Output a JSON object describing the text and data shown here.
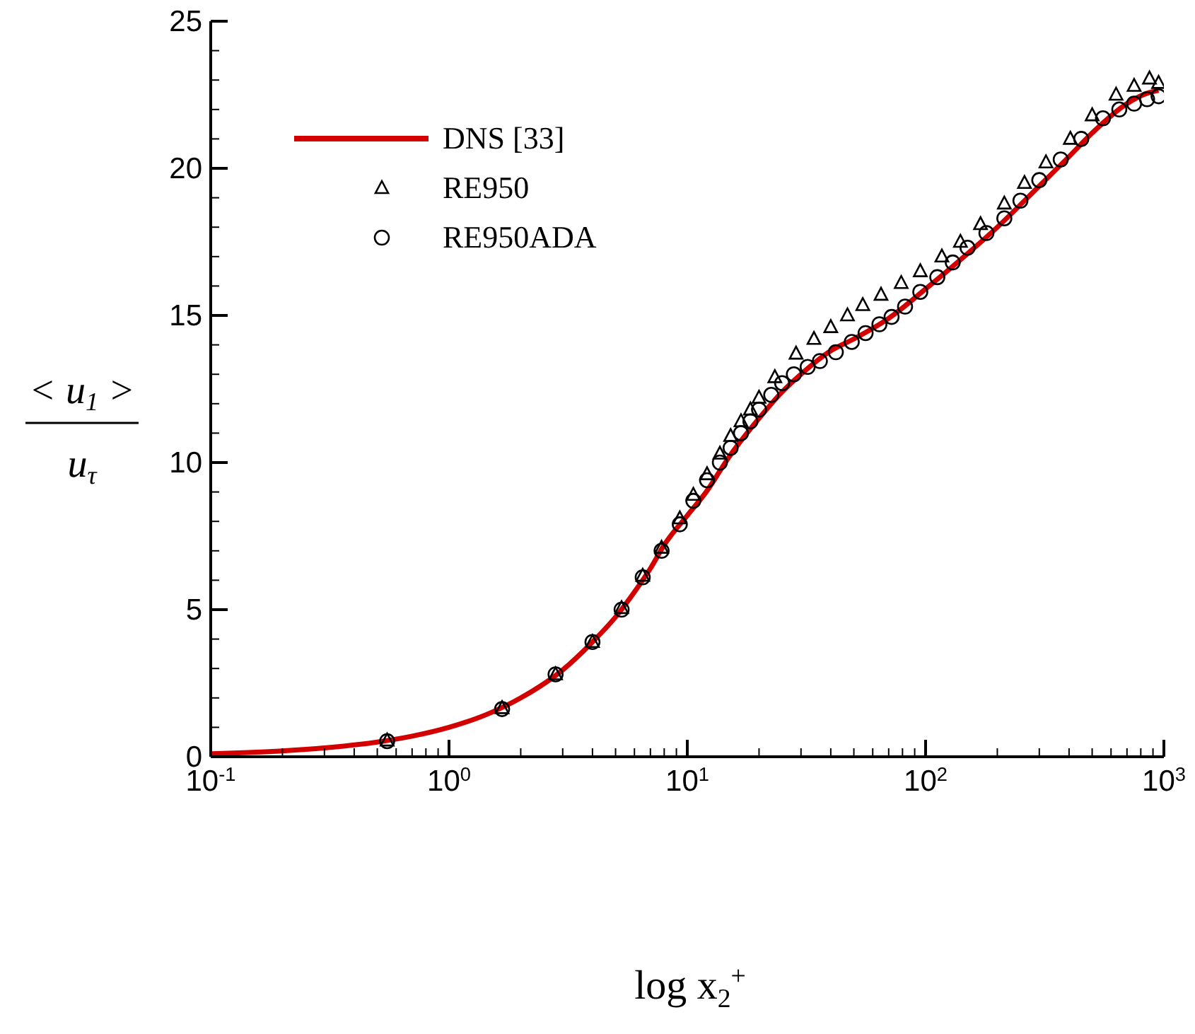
{
  "chart_data": {
    "type": "scatter",
    "xlabel": "log x$_{2}$$^{+}$",
    "ylabel": "< u$_{1}$ >\nu$_{τ}$",
    "log": "x",
    "xlim": [
      0.1,
      1000
    ],
    "ylim": [
      0,
      25
    ],
    "xticks": [
      {
        "value": 0.1,
        "label": "10$^{-1}$"
      },
      {
        "value": 0.2,
        "label": null
      },
      {
        "value": 0.3,
        "label": null
      },
      {
        "value": 0.4,
        "label": null
      },
      {
        "value": 0.5,
        "label": null
      },
      {
        "value": 0.6,
        "label": null
      },
      {
        "value": 0.7,
        "label": null
      },
      {
        "value": 0.8,
        "label": null
      },
      {
        "value": 0.9,
        "label": null
      },
      {
        "value": 1,
        "label": "10$^{0}$"
      },
      {
        "value": 2,
        "label": null
      },
      {
        "value": 3,
        "label": null
      },
      {
        "value": 4,
        "label": null
      },
      {
        "value": 5,
        "label": null
      },
      {
        "value": 6,
        "label": null
      },
      {
        "value": 7,
        "label": null
      },
      {
        "value": 8,
        "label": null
      },
      {
        "value": 9,
        "label": null
      },
      {
        "value": 10,
        "label": "10$^{1}$"
      },
      {
        "value": 20,
        "label": null
      },
      {
        "value": 30,
        "label": null
      },
      {
        "value": 40,
        "label": null
      },
      {
        "value": 50,
        "label": null
      },
      {
        "value": 60,
        "label": null
      },
      {
        "value": 70,
        "label": null
      },
      {
        "value": 80,
        "label": null
      },
      {
        "value": 90,
        "label": null
      },
      {
        "value": 100,
        "label": "10$^{2}$"
      },
      {
        "value": 200,
        "label": null
      },
      {
        "value": 300,
        "label": null
      },
      {
        "value": 400,
        "label": null
      },
      {
        "value": 500,
        "label": null
      },
      {
        "value": 600,
        "label": null
      },
      {
        "value": 700,
        "label": null
      },
      {
        "value": 800,
        "label": null
      },
      {
        "value": 900,
        "label": null
      },
      {
        "value": 1000,
        "label": "10$^{3}$"
      }
    ],
    "yticks": [
      0,
      {
        "value": 1,
        "label": null
      },
      {
        "value": 2,
        "label": null
      },
      {
        "value": 3,
        "label": null
      },
      {
        "value": 4,
        "label": null
      },
      5,
      {
        "value": 6,
        "label": null
      },
      {
        "value": 7,
        "label": null
      },
      {
        "value": 8,
        "label": null
      },
      {
        "value": 9,
        "label": null
      },
      10,
      {
        "value": 11,
        "label": null
      },
      {
        "value": 12,
        "label": null
      },
      {
        "value": 13,
        "label": null
      },
      {
        "value": 14,
        "label": null
      },
      15,
      {
        "value": 16,
        "label": null
      },
      {
        "value": 17,
        "label": null
      },
      {
        "value": 18,
        "label": null
      },
      {
        "value": 19,
        "label": null
      },
      20,
      {
        "value": 21,
        "label": null
      },
      {
        "value": 22,
        "label": null
      },
      {
        "value": 23,
        "label": null
      },
      {
        "value": 24,
        "label": null
      },
      25
    ],
    "grid": false,
    "legend": "top left",
    "series": [
      {
        "name": "DNS [33]",
        "type": "line",
        "color": "#d40000",
        "marker": "none",
        "line_style": "solid",
        "x": [
          0.1,
          0.2,
          0.3,
          0.5,
          0.7,
          1,
          1.5,
          2,
          3,
          4,
          5,
          6,
          7,
          8,
          10,
          12,
          15,
          20,
          25,
          30,
          40,
          50,
          70,
          100,
          150,
          200,
          300,
          400,
          500,
          700,
          850,
          950
        ],
        "values": [
          0.1,
          0.2,
          0.3,
          0.5,
          0.7,
          1.0,
          1.5,
          2.0,
          2.95,
          3.9,
          4.75,
          5.6,
          6.4,
          7.2,
          8.2,
          9.0,
          10.2,
          11.5,
          12.4,
          13.0,
          13.8,
          14.2,
          14.9,
          15.9,
          17.1,
          18.0,
          19.4,
          20.4,
          21.2,
          22.2,
          22.55,
          22.65
        ]
      },
      {
        "name": "RE950",
        "color": "#000000",
        "marker": "triangle",
        "x": [
          0.55,
          1.67,
          2.8,
          4.0,
          5.3,
          6.5,
          7.8,
          9.3,
          10.6,
          12.1,
          13.7,
          15.2,
          16.8,
          18.4,
          20,
          23.3,
          28.6,
          34,
          40,
          47,
          54.5,
          65,
          79,
          95,
          117,
          140,
          170,
          214,
          260,
          320,
          405,
          500,
          630,
          750,
          870,
          950
        ],
        "values": [
          0.55,
          1.65,
          2.8,
          3.9,
          5.05,
          6.15,
          7.1,
          8.1,
          8.9,
          9.6,
          10.3,
          10.9,
          11.4,
          11.8,
          12.2,
          12.9,
          13.7,
          14.2,
          14.6,
          15.0,
          15.35,
          15.7,
          16.1,
          16.5,
          17.0,
          17.5,
          18.1,
          18.8,
          19.5,
          20.2,
          21.0,
          21.8,
          22.5,
          22.8,
          23.05,
          22.9
        ]
      },
      {
        "name": "RE950ADA",
        "color": "#000000",
        "marker": "circle",
        "x": [
          0.55,
          1.67,
          2.8,
          4.0,
          5.3,
          6.5,
          7.8,
          9.3,
          10.6,
          12.1,
          13.7,
          15.2,
          16.8,
          18.4,
          20,
          22.5,
          25,
          28,
          32,
          36,
          42,
          49,
          56,
          64,
          72,
          82,
          95,
          112,
          130,
          150,
          180,
          214,
          250,
          300,
          369,
          450,
          555,
          650,
          750,
          850,
          950
        ],
        "values": [
          0.53,
          1.62,
          2.8,
          3.9,
          5.0,
          6.1,
          7.0,
          7.9,
          8.7,
          9.4,
          10.0,
          10.5,
          11.0,
          11.4,
          11.8,
          12.3,
          12.7,
          13.0,
          13.25,
          13.45,
          13.75,
          14.1,
          14.4,
          14.7,
          14.95,
          15.3,
          15.8,
          16.3,
          16.8,
          17.3,
          17.8,
          18.3,
          18.9,
          19.6,
          20.3,
          21.0,
          21.7,
          22.0,
          22.2,
          22.35,
          22.45
        ]
      }
    ]
  }
}
